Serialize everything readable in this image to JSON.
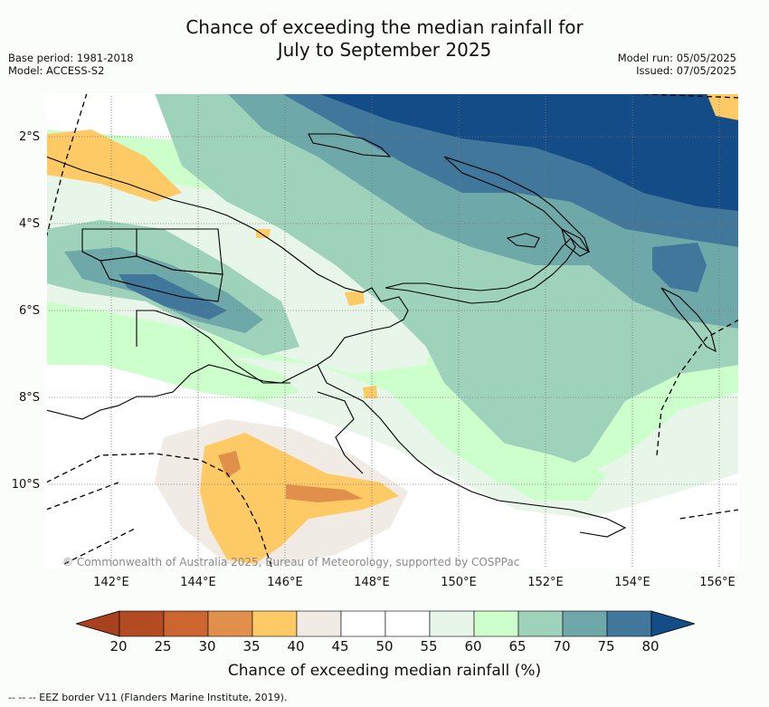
{
  "title_line1": "Chance of exceeding the median rainfall for",
  "title_line2": "July to September 2025",
  "meta_left": {
    "base_period": "Base period: 1981-2018",
    "model": "Model: ACCESS-S2"
  },
  "meta_right": {
    "model_run": "Model run: 05/05/2025",
    "issued": "Issued: 07/05/2025"
  },
  "lat_labels": [
    "2°S",
    "4°S",
    "6°S",
    "8°S",
    "10°S"
  ],
  "lon_labels": [
    "142°E",
    "144°E",
    "146°E",
    "148°E",
    "150°E",
    "152°E",
    "154°E",
    "156°E"
  ],
  "copyright": "© Commonwealth of Australia 2025, Bureau of Meteorology, supported by COSPPac",
  "colorbar": {
    "ticks": [
      "20",
      "25",
      "30",
      "35",
      "40",
      "45",
      "50",
      "55",
      "60",
      "65",
      "70",
      "75",
      "80"
    ],
    "colors": [
      "#a8411e",
      "#b24b22",
      "#cc6530",
      "#e0904a",
      "#fdca66",
      "#f1ebe6",
      "#ffffff",
      "#ffffff",
      "#e8f5e9",
      "#ccffcc",
      "#9fd2bb",
      "#6ea8a8",
      "#40779a",
      "#134c87"
    ],
    "label": "Chance of exceeding median rainfall (%)"
  },
  "footnote": "-- -- -- EEZ border V11 (Flanders Marine Institute, 2019)."
}
